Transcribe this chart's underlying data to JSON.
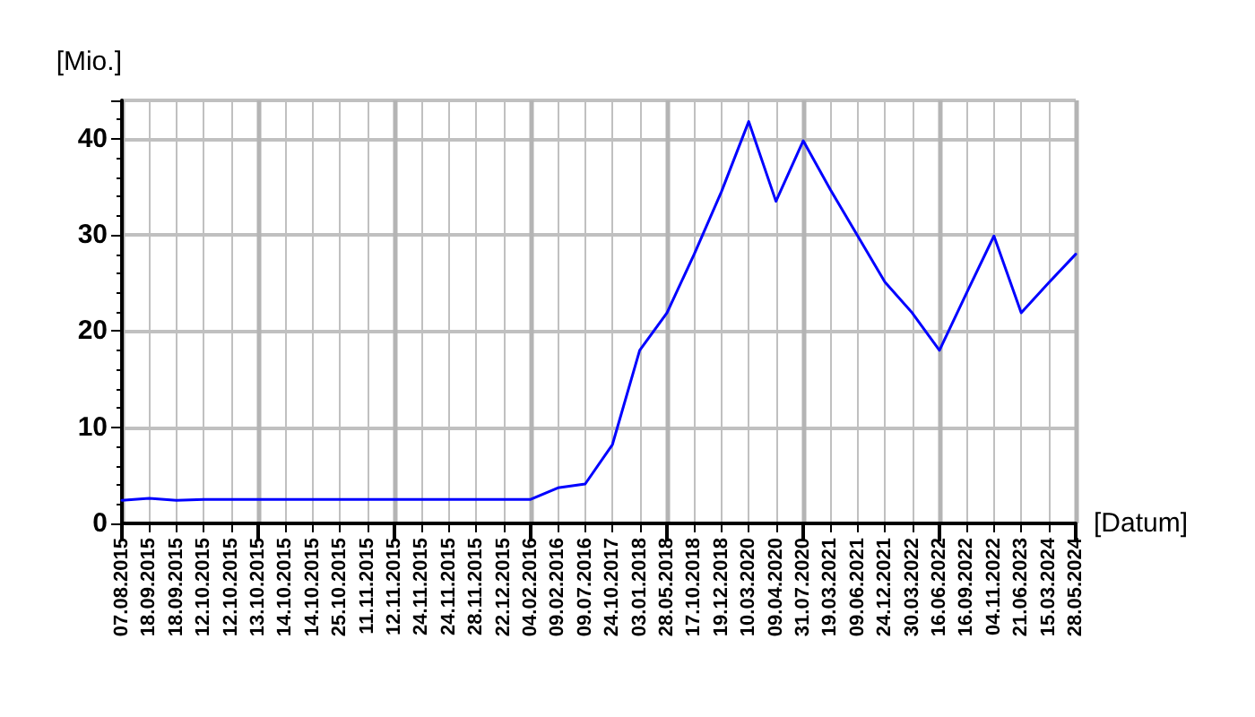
{
  "chart_data": {
    "type": "line",
    "xlabel": "[Datum]",
    "ylabel": "[Mio.]",
    "categories": [
      "07.08.2015",
      "18.09.2015",
      "18.09.2015",
      "12.10.2015",
      "12.10.2015",
      "13.10.2015",
      "14.10.2015",
      "14.10.2015",
      "25.10.2015",
      "11.11.2015",
      "12.11.2015",
      "24.11.2015",
      "24.11.2015",
      "28.11.2015",
      "22.12.2015",
      "04.02.2016",
      "09.02.2016",
      "09.07.2016",
      "24.10.2017",
      "03.01.2018",
      "28.05.2018",
      "17.10.2018",
      "19.12.2018",
      "10.03.2020",
      "09.04.2020",
      "31.07.2020",
      "19.03.2021",
      "09.06.2021",
      "24.12.2021",
      "30.03.2022",
      "16.06.2022",
      "16.09.2022",
      "04.11.2022",
      "21.06.2023",
      "15.03.2024",
      "28.05.2024"
    ],
    "series": [
      {
        "color": "#0000ff",
        "values": [
          2.4,
          2.6,
          2.4,
          2.5,
          2.5,
          2.5,
          2.5,
          2.5,
          2.5,
          2.5,
          2.5,
          2.5,
          2.5,
          2.5,
          2.5,
          2.5,
          3.7,
          4.1,
          8.2,
          18,
          21.9,
          28,
          34.5,
          41.8,
          33.5,
          39.8,
          34.7,
          29.9,
          25.1,
          21.9,
          18,
          24,
          29.9,
          21.9,
          25,
          28
        ]
      }
    ],
    "ylim": [
      0,
      44
    ],
    "yticks": [
      0,
      10,
      20,
      30,
      40
    ],
    "grid": true,
    "marker": "none",
    "line_style": "solid"
  }
}
